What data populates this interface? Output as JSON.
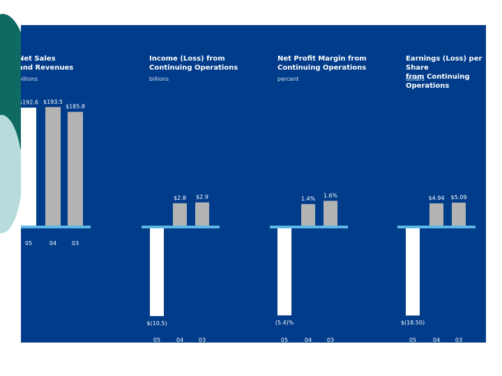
{
  "colors": {
    "panel_bg": "#003c8a",
    "bar_current": "#ffffff",
    "bar_prior": "#b3b3b3",
    "axis_line": "#5fb7e5",
    "label_text": "#ffffff",
    "deco_teal": "#0f6a64",
    "deco_light": "#b8dcdc"
  },
  "chart_data": [
    {
      "type": "bar",
      "title": "Net Sales\nand Revenues",
      "unit": "billions",
      "categories": [
        "05",
        "04",
        "03"
      ],
      "values": [
        192.6,
        193.5,
        185.8
      ],
      "value_labels": [
        "$192.6",
        "$193.5",
        "$185.8"
      ],
      "ylim": [
        0,
        200
      ]
    },
    {
      "type": "bar",
      "title": "Income (Loss) from\nContinuing Operations",
      "unit": "billions",
      "categories": [
        "05",
        "04",
        "03"
      ],
      "values": [
        -10.5,
        2.8,
        2.9
      ],
      "value_labels": [
        "$(10.5)",
        "$2.8",
        "$2.9"
      ],
      "ylim": [
        -11,
        4
      ]
    },
    {
      "type": "bar",
      "title": "Net Profit Margin from\nContinuing Operations",
      "unit": "percent",
      "categories": [
        "05",
        "04",
        "03"
      ],
      "values": [
        -5.4,
        1.4,
        1.6
      ],
      "value_labels": [
        "(5.4)%",
        "1.4%",
        "1.6%"
      ],
      "ylim": [
        -5.7,
        2.2
      ]
    },
    {
      "type": "bar",
      "title": "Earnings (Loss) per Share\nfrom Continuing Operations",
      "unit": "dollars",
      "categories": [
        "05",
        "04",
        "03"
      ],
      "values": [
        -18.5,
        4.94,
        5.09
      ],
      "value_labels": [
        "$(18.50)",
        "$4.94",
        "$5.09"
      ],
      "ylim": [
        -19.5,
        7
      ]
    }
  ]
}
